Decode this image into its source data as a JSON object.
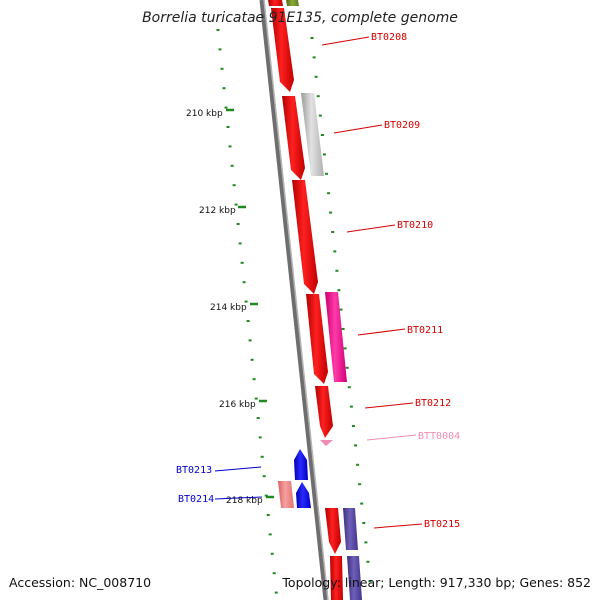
{
  "title": "Borrelia turicatae 91E135, complete genome",
  "footer": {
    "accession": "Accession: NC_008710",
    "summary": "Topology: linear; Length: 917,330 bp; Genes: 852"
  },
  "colors": {
    "tick": "#1f8a1f",
    "forward_gene": "#ff0000",
    "gene_label_red": "#d40000",
    "gene_label_pink": "#f08cb4",
    "gene_label_blue": "#0000c8",
    "gray_gene": "#c4c4c4",
    "pink_gene": "#ff1493",
    "purple_gene": "#5a4b9c",
    "blue_gene": "#0000ff",
    "salmon_gene": "#f08080",
    "green_gene": "#6b8e23",
    "backbone": "#808080"
  },
  "scale_labels": [
    "210 kbp",
    "212 kbp",
    "214 kbp",
    "216 kbp",
    "218 kbp"
  ],
  "genes": [
    {
      "label": "BT0208",
      "color": "gene_label_red"
    },
    {
      "label": "BT0209",
      "color": "gene_label_red"
    },
    {
      "label": "BT0210",
      "color": "gene_label_red"
    },
    {
      "label": "BT0211",
      "color": "gene_label_red"
    },
    {
      "label": "BT0212",
      "color": "gene_label_red"
    },
    {
      "label": "BTT0004",
      "color": "gene_label_pink"
    },
    {
      "label": "BT0213",
      "color": "gene_label_blue"
    },
    {
      "label": "BT0214",
      "color": "gene_label_blue"
    },
    {
      "label": "BT0215",
      "color": "gene_label_red"
    }
  ]
}
